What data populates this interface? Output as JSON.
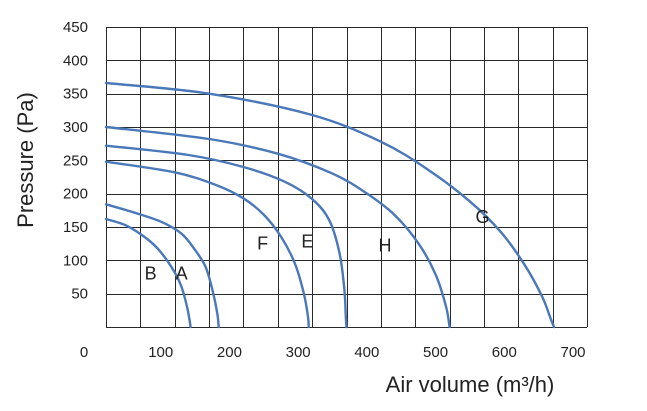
{
  "chart_data": {
    "type": "line",
    "xlabel": "Air volume (m³/h)",
    "ylabel": "Pressure (Pa)",
    "xlim": [
      0,
      700
    ],
    "ylim": [
      0,
      450
    ],
    "x_ticks": [
      0,
      100,
      200,
      300,
      400,
      500,
      600,
      700
    ],
    "y_ticks": [
      50,
      100,
      150,
      200,
      250,
      300,
      350,
      400,
      450
    ],
    "x_grid_step": 50,
    "y_grid_step": 50,
    "grid": true,
    "line_color": "#4a78b8",
    "series": [
      {
        "name": "B",
        "x": [
          0,
          30,
          60,
          80,
          100,
          110,
          118,
          122,
          123
        ],
        "y": [
          162,
          152,
          132,
          112,
          82,
          60,
          30,
          8,
          0
        ]
      },
      {
        "name": "A",
        "x": [
          0,
          40,
          80,
          110,
          130,
          145,
          155,
          162,
          164
        ],
        "y": [
          184,
          172,
          158,
          140,
          115,
          90,
          55,
          20,
          0
        ]
      },
      {
        "name": "F",
        "x": [
          0,
          100,
          160,
          200,
          230,
          255,
          275,
          288,
          294,
          295
        ],
        "y": [
          248,
          232,
          213,
          193,
          168,
          135,
          95,
          50,
          15,
          0
        ]
      },
      {
        "name": "E",
        "x": [
          0,
          120,
          200,
          260,
          300,
          325,
          340,
          347,
          349,
          350
        ],
        "y": [
          272,
          258,
          240,
          218,
          192,
          160,
          110,
          55,
          15,
          0
        ]
      },
      {
        "name": "H",
        "x": [
          0,
          150,
          250,
          330,
          380,
          420,
          455,
          480,
          495,
          500
        ],
        "y": [
          300,
          282,
          260,
          230,
          200,
          168,
          125,
          78,
          30,
          0
        ]
      },
      {
        "name": "G",
        "x": [
          0,
          150,
          300,
          400,
          470,
          530,
          575,
          610,
          635,
          648,
          652
        ],
        "y": [
          366,
          350,
          318,
          278,
          235,
          188,
          142,
          92,
          45,
          10,
          0
        ]
      }
    ],
    "curve_labels": [
      {
        "text": "B",
        "x": 65,
        "y": 80
      },
      {
        "text": "A",
        "x": 110,
        "y": 80
      },
      {
        "text": "F",
        "x": 228,
        "y": 125
      },
      {
        "text": "E",
        "x": 293,
        "y": 128
      },
      {
        "text": "H",
        "x": 406,
        "y": 122
      },
      {
        "text": "G",
        "x": 548,
        "y": 165
      }
    ]
  }
}
